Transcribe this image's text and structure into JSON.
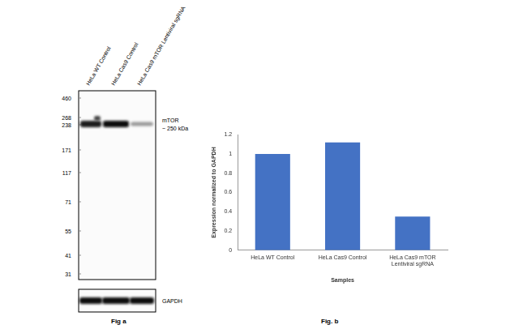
{
  "figure_a": {
    "lanes": [
      "HeLa WT Control",
      "HeLa Cas9 Control",
      "HeLa Cas9 mTOR Lentiviral sgRNA"
    ],
    "markers": [
      460,
      268,
      238,
      171,
      117,
      71,
      55,
      41,
      31
    ],
    "target_label": "mTOR",
    "target_size": "~ 250  kDa",
    "loading_control": "GAPDH",
    "caption": "Fig a"
  },
  "chart_data": {
    "type": "bar",
    "caption": "Fig. b",
    "x_label": "Samples",
    "y_label": "Expression normalized to GAPDH",
    "categories": [
      "HeLa WT Control",
      "HeLa Cas9 Control",
      "HeLa Cas9 mTOR Lentiviral sgRNA"
    ],
    "values": [
      1.0,
      1.12,
      0.35
    ],
    "color": "#4472c4",
    "ylim": [
      0,
      1.2
    ],
    "yticks": [
      0,
      0.2,
      0.4,
      0.6,
      0.8,
      1,
      1.2
    ],
    "grid": false
  }
}
